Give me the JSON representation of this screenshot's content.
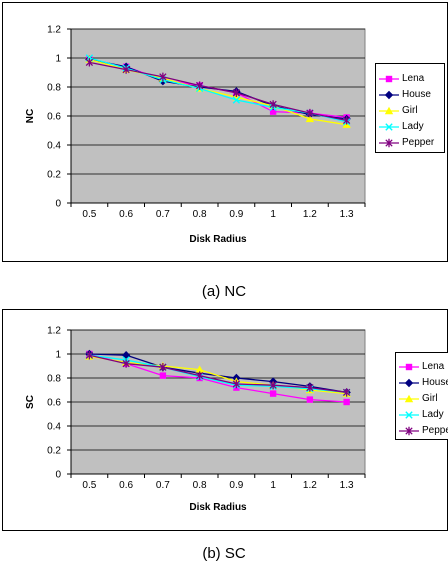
{
  "chart_data": [
    {
      "type": "line",
      "caption": "(a)    NC",
      "xlabel": "Disk Radius",
      "ylabel": "NC",
      "categories": [
        "0.5",
        "0.6",
        "0.7",
        "0.8",
        "0.9",
        "1",
        "1.2",
        "1.3"
      ],
      "ylim": [
        0,
        1.2
      ],
      "yticks": [
        "0",
        "0.2",
        "0.4",
        "0.6",
        "0.8",
        "1",
        "1.2"
      ],
      "plot_background": "#c0c0c0",
      "grid": true,
      "legend": "right",
      "series": [
        {
          "name": "Lena",
          "color": "#ff00ff",
          "marker": "square",
          "values": [
            0.99,
            0.94,
            0.85,
            0.81,
            0.76,
            0.63,
            0.62,
            0.59
          ]
        },
        {
          "name": "House",
          "color": "#000080",
          "marker": "diamond",
          "values": [
            0.99,
            0.94,
            0.84,
            0.8,
            0.77,
            0.67,
            0.61,
            0.58
          ]
        },
        {
          "name": "Girl",
          "color": "#ffff00",
          "marker": "triangle",
          "values": [
            0.99,
            0.92,
            0.86,
            0.79,
            0.73,
            0.67,
            0.58,
            0.54
          ]
        },
        {
          "name": "Lady",
          "color": "#00ffff",
          "marker": "x",
          "values": [
            1.0,
            0.93,
            0.85,
            0.79,
            0.71,
            0.66,
            0.62,
            0.56
          ]
        },
        {
          "name": "Pepper",
          "color": "#800080",
          "marker": "star",
          "values": [
            0.97,
            0.92,
            0.87,
            0.81,
            0.76,
            0.68,
            0.62,
            0.57
          ]
        }
      ]
    },
    {
      "type": "line",
      "caption": "(b) SC",
      "xlabel": "Disk Radius",
      "ylabel": "SC",
      "categories": [
        "0.5",
        "0.6",
        "0.7",
        "0.8",
        "0.9",
        "1",
        "1.2",
        "1.3"
      ],
      "ylim": [
        0,
        1.2
      ],
      "yticks": [
        "0",
        "0.2",
        "0.4",
        "0.6",
        "0.8",
        "1",
        "1.2"
      ],
      "plot_background": "#c0c0c0",
      "grid": true,
      "legend": "right",
      "series": [
        {
          "name": "Lena",
          "color": "#ff00ff",
          "marker": "square",
          "values": [
            1.0,
            0.92,
            0.82,
            0.8,
            0.72,
            0.67,
            0.62,
            0.6
          ]
        },
        {
          "name": "House",
          "color": "#000080",
          "marker": "diamond",
          "values": [
            1.0,
            0.99,
            0.89,
            0.84,
            0.8,
            0.77,
            0.73,
            0.68
          ]
        },
        {
          "name": "Girl",
          "color": "#ffff00",
          "marker": "triangle",
          "values": [
            0.98,
            0.93,
            0.9,
            0.87,
            0.77,
            0.74,
            0.7,
            0.67
          ]
        },
        {
          "name": "Lady",
          "color": "#00ffff",
          "marker": "x",
          "values": [
            0.99,
            0.95,
            0.89,
            0.81,
            0.74,
            0.73,
            0.71,
            0.68
          ]
        },
        {
          "name": "Pepper",
          "color": "#800080",
          "marker": "star",
          "values": [
            0.99,
            0.92,
            0.89,
            0.82,
            0.75,
            0.74,
            0.72,
            0.68
          ]
        }
      ]
    }
  ]
}
